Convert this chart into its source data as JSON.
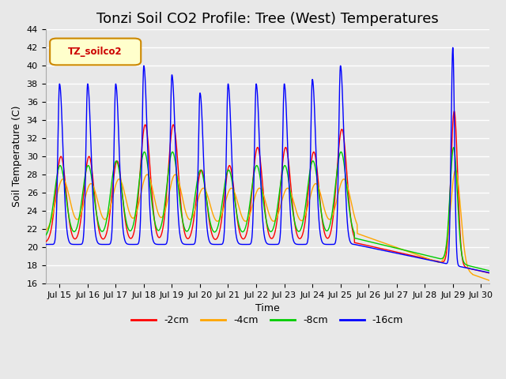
{
  "title": "Tonzi Soil CO2 Profile: Tree (West) Temperatures",
  "ylabel": "Soil Temperature (C)",
  "xlabel": "Time",
  "legend_label": "TZ_soilco2",
  "series_labels": [
    "-2cm",
    "-4cm",
    "-8cm",
    "-16cm"
  ],
  "series_colors": [
    "#ff0000",
    "#ffa500",
    "#00cc00",
    "#0000ff"
  ],
  "ylim": [
    16,
    44
  ],
  "xlim_start": 14.5,
  "xlim_end": 30.3,
  "xtick_positions": [
    15,
    16,
    17,
    18,
    19,
    20,
    21,
    22,
    23,
    24,
    25,
    26,
    27,
    28,
    29,
    30
  ],
  "xtick_labels": [
    "Jul 15",
    "Jul 16",
    "Jul 17",
    "Jul 18",
    "Jul 19",
    "Jul 20",
    "Jul 21",
    "Jul 22",
    "Jul 23",
    "Jul 24",
    "Jul 25",
    "Jul 26",
    "Jul 27",
    "Jul 28",
    "Jul 29",
    "Jul 30"
  ],
  "ytick_positions": [
    16,
    18,
    20,
    22,
    24,
    26,
    28,
    30,
    32,
    34,
    36,
    38,
    40,
    42,
    44
  ],
  "background_color": "#e8e8e8",
  "plot_bg_color": "#e8e8e8",
  "grid_color": "#ffffff",
  "title_fontsize": 13,
  "label_fontsize": 9,
  "tick_fontsize": 8,
  "legend_box_color": "#ffffcc",
  "legend_box_edge": "#cc8800"
}
